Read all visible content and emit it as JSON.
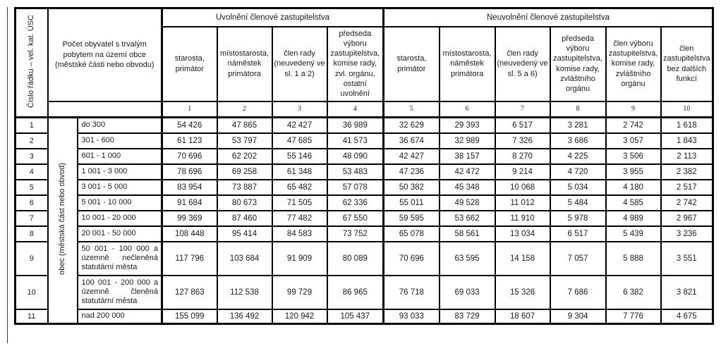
{
  "page": {
    "background": "#ffffff",
    "text_color": "#1a1a1a",
    "border_color": "#000000"
  },
  "table": {
    "corner_header": "Číslo řádku – vel. kat. ÚSC",
    "population_header": "Počet obyvatel s trvalým pobytem na území obce (městské části nebo obvodu)",
    "row_group_label": "obec (městská část nebo obvod)",
    "groups": [
      {
        "label": "Uvolnění členové zastupitelstva",
        "columns": [
          "starosta, primátor",
          "místostarosta, náměstek primátora",
          "člen rady (neuvedený ve sl. 1 a 2)",
          "předseda výboru zastupitelstva, komise rady, zvl. orgánu, ostatní uvolnění"
        ]
      },
      {
        "label": "Neuvolnění členové zastupitelstva",
        "columns": [
          "starosta, primátor",
          "místostarosta, náměstek primátora",
          "člen rady (neuvedený ve sl. 5 a 6)",
          "předseda výboru zastupitelstva, komise rady, zvláštního orgánu",
          "člen výboru zastupitelstva, komise rady, zvláštního orgánu",
          "člen zastupitelstva bez dalších funkcí"
        ]
      }
    ],
    "column_numbers": [
      "1",
      "2",
      "3",
      "4",
      "5",
      "6",
      "7",
      "8",
      "9",
      "10"
    ],
    "rows": [
      {
        "num": "1",
        "category": "do 300",
        "values": [
          "54 426",
          "47 865",
          "42 427",
          "36 989",
          "32 629",
          "29 393",
          "6 517",
          "3 281",
          "2 742",
          "1 618"
        ]
      },
      {
        "num": "2",
        "category": "301 - 600",
        "values": [
          "61 123",
          "53 797",
          "47 685",
          "41 573",
          "36 674",
          "32 989",
          "7 326",
          "3 686",
          "3 057",
          "1 843"
        ]
      },
      {
        "num": "3",
        "category": "601 - 1 000",
        "values": [
          "70 696",
          "62 202",
          "55 146",
          "48 090",
          "42 427",
          "38 157",
          "8 270",
          "4 225",
          "3 506",
          "2 113"
        ]
      },
      {
        "num": "4",
        "category": "1 001 - 3 000",
        "values": [
          "78 696",
          "69 258",
          "61 348",
          "53 483",
          "47 236",
          "42 472",
          "9 214",
          "4 720",
          "3 955",
          "2 382"
        ]
      },
      {
        "num": "5",
        "category": "3 001 - 5 000",
        "values": [
          "83 954",
          "73 887",
          "65 482",
          "57 078",
          "50 382",
          "45 348",
          "10 068",
          "5 034",
          "4 180",
          "2 517"
        ]
      },
      {
        "num": "6",
        "category": "5 001 - 10 000",
        "values": [
          "91 684",
          "80 673",
          "71 505",
          "62 336",
          "55 011",
          "49 528",
          "11 012",
          "5 484",
          "4 585",
          "2 742"
        ]
      },
      {
        "num": "7",
        "category": "10 001 - 20 000",
        "values": [
          "99 369",
          "87 460",
          "77 482",
          "67 550",
          "59 595",
          "53 662",
          "11 910",
          "5 978",
          "4 989",
          "2 967"
        ]
      },
      {
        "num": "8",
        "category": "20 001 - 50 000",
        "values": [
          "108 448",
          "95 414",
          "84 583",
          "73 752",
          "65 078",
          "58 561",
          "13 034",
          "6 517",
          "5 439",
          "3 236"
        ]
      },
      {
        "num": "9",
        "category": "50 001 - 100 000 a územně nečleněná statutární města",
        "values": [
          "117 796",
          "103 684",
          "91 909",
          "80 089",
          "70 696",
          "63 595",
          "14 158",
          "7 057",
          "5 888",
          "3 551"
        ]
      },
      {
        "num": "10",
        "category": "100 001 - 200 000 a územně členěná statutární města",
        "values": [
          "127 863",
          "112 538",
          "99 729",
          "86 965",
          "76 718",
          "69 033",
          "15 326",
          "7 686",
          "6 382",
          "3 821"
        ]
      },
      {
        "num": "11",
        "category": "nad 200 000",
        "values": [
          "155 099",
          "136 492",
          "120 942",
          "105 437",
          "93 033",
          "83 729",
          "18 607",
          "9 304",
          "7 776",
          "4 675"
        ]
      }
    ]
  }
}
